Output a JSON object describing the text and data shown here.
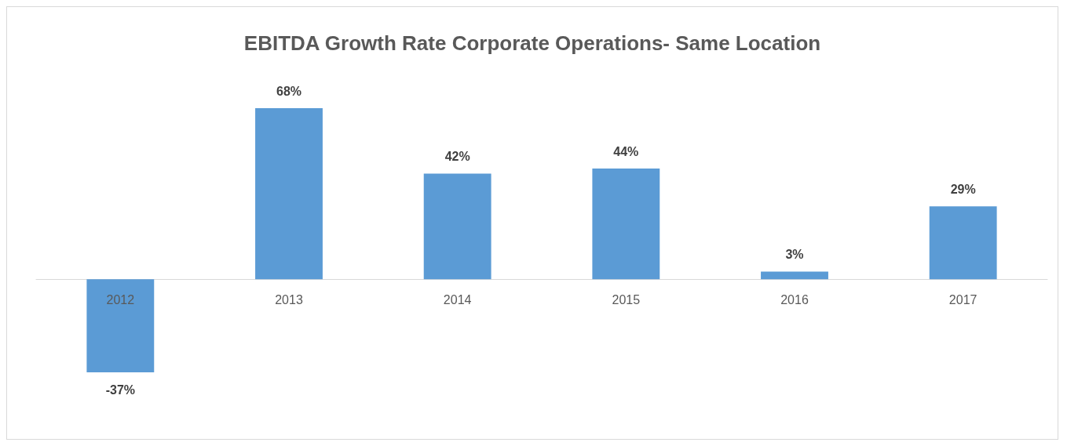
{
  "chart_data": {
    "type": "bar",
    "title": "EBITDA Growth Rate Corporate Operations- Same Location",
    "categories": [
      "2012",
      "2013",
      "2014",
      "2015",
      "2016",
      "2017"
    ],
    "values": [
      -37,
      68,
      42,
      44,
      3,
      29
    ],
    "value_labels": [
      "-37%",
      "68%",
      "42%",
      "44%",
      "3%",
      "29%"
    ],
    "color": "#5b9bd5",
    "grid": false
  }
}
